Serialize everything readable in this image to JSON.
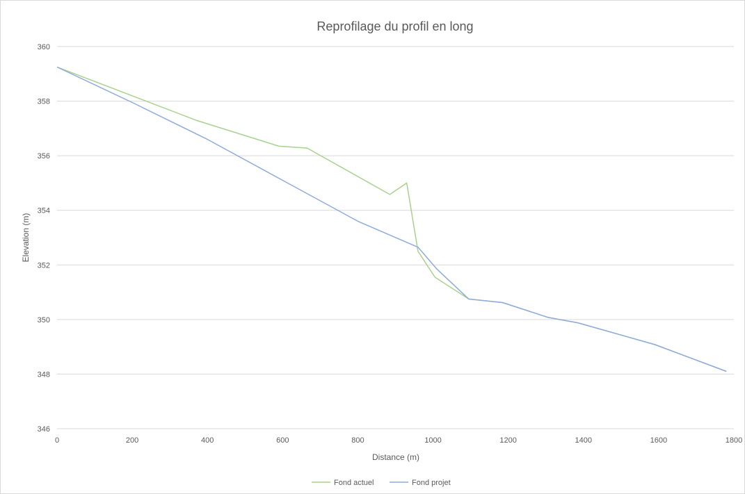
{
  "chart_data": {
    "type": "line",
    "title": "Reprofilage du profil en long",
    "xlabel": "Distance (m)",
    "ylabel": "Elevation (m)",
    "xlim": [
      0,
      1800
    ],
    "ylim": [
      346,
      360
    ],
    "x_ticks": [
      "0",
      "200",
      "400",
      "600",
      "800",
      "1000",
      "1200",
      "1400",
      "1600",
      "1800"
    ],
    "y_ticks": [
      "346",
      "348",
      "350",
      "352",
      "354",
      "356",
      "358",
      "360"
    ],
    "grid": "horizontal",
    "legend_position": "bottom",
    "series": [
      {
        "name": "Fond actuel",
        "color": "#a9d18e",
        "x": [
          0,
          370,
          590,
          665,
          885,
          930,
          960,
          1005,
          1095,
          1185,
          1305,
          1385,
          1590,
          1780
        ],
        "y": [
          359.25,
          357.3,
          356.35,
          356.28,
          354.58,
          355.0,
          352.5,
          351.55,
          350.75,
          350.62,
          350.08,
          349.88,
          349.08,
          348.1
        ]
      },
      {
        "name": "Fond projet",
        "color": "#8faadc",
        "x": [
          0,
          200,
          400,
          600,
          800,
          960,
          1010,
          1095,
          1185,
          1305,
          1385,
          1590,
          1780
        ],
        "y": [
          359.25,
          357.95,
          356.6,
          355.1,
          353.6,
          352.65,
          351.85,
          350.75,
          350.62,
          350.08,
          349.88,
          349.08,
          348.1
        ]
      }
    ]
  }
}
